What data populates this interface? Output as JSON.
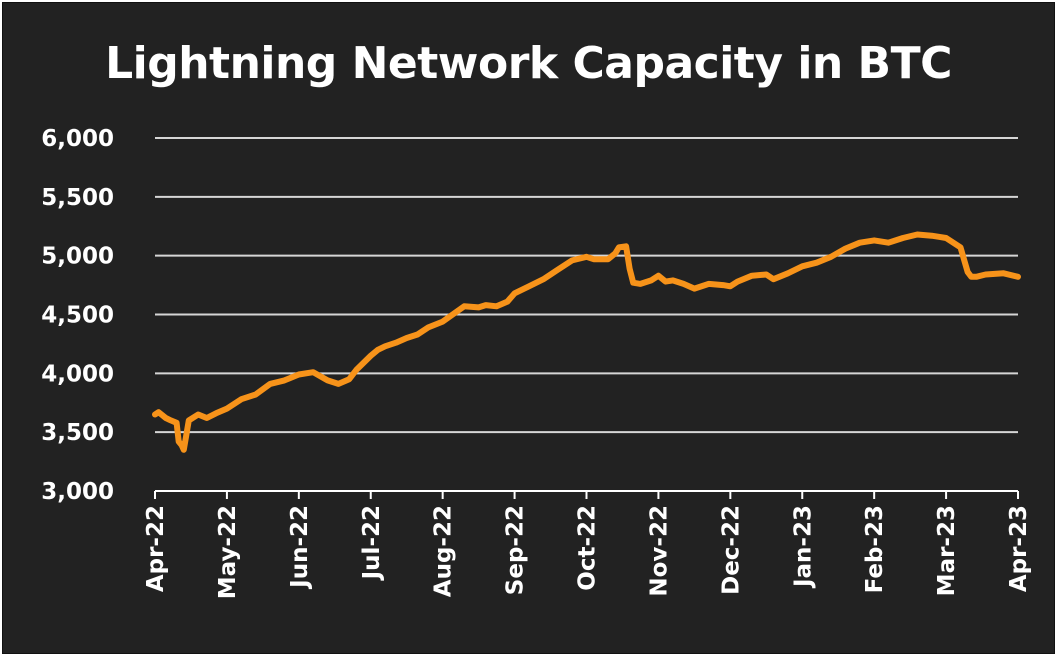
{
  "chart_data": {
    "type": "line",
    "title": "Lightning Network Capacity in BTC",
    "xlabel": "",
    "ylabel": "",
    "ylim": [
      3000,
      6000
    ],
    "yticks": [
      "3,000",
      "3,500",
      "4,000",
      "4,500",
      "5,000",
      "5,500",
      "6,000"
    ],
    "yticks_values": [
      3000,
      3500,
      4000,
      4500,
      5000,
      5500,
      6000
    ],
    "xticks": [
      "Apr-22",
      "May-22",
      "Jun-22",
      "Jul-22",
      "Aug-22",
      "Sep-22",
      "Oct-22",
      "Nov-22",
      "Dec-22",
      "Jan-23",
      "Feb-23",
      "Mar-23",
      "Apr-23"
    ],
    "grid": true,
    "line_color": "#f7931a",
    "series": [
      {
        "x": [
          0,
          0.05,
          0.15,
          0.22,
          0.3,
          0.33,
          0.37,
          0.4,
          0.47,
          0.6,
          0.72,
          0.85,
          1.0,
          1.2,
          1.4,
          1.6,
          1.8,
          2.0,
          2.2,
          2.4,
          2.55,
          2.7,
          2.8,
          3.0,
          3.1,
          3.2,
          3.35,
          3.5,
          3.65,
          3.8,
          4.0,
          4.3,
          4.5,
          4.6,
          4.75,
          4.9,
          5.0,
          5.2,
          5.4,
          5.6,
          5.8,
          6.0,
          6.1,
          6.2,
          6.3,
          6.4,
          6.45,
          6.55,
          6.6,
          6.65,
          6.75,
          6.9,
          7.0,
          7.1,
          7.2,
          7.35,
          7.5,
          7.7,
          7.9,
          8.0,
          8.1,
          8.3,
          8.5,
          8.6,
          8.8,
          8.9,
          9.0,
          9.2,
          9.4,
          9.6,
          9.8,
          10.0,
          10.2,
          10.4,
          10.6,
          10.8,
          10.9,
          11.0,
          11.2,
          11.3,
          11.35,
          11.42,
          11.55,
          11.8,
          12.0
        ],
        "y": [
          3650,
          3670,
          3620,
          3600,
          3580,
          3420,
          3390,
          3350,
          3600,
          3650,
          3620,
          3660,
          3700,
          3780,
          3820,
          3910,
          3940,
          3990,
          4010,
          3940,
          3910,
          3950,
          4030,
          4150,
          4200,
          4230,
          4260,
          4300,
          4330,
          4390,
          4440,
          4570,
          4560,
          4580,
          4570,
          4610,
          4680,
          4740,
          4800,
          4880,
          4960,
          4990,
          4970,
          4970,
          4970,
          5020,
          5070,
          5080,
          4890,
          4770,
          4760,
          4790,
          4830,
          4780,
          4790,
          4760,
          4720,
          4760,
          4750,
          4740,
          4780,
          4830,
          4840,
          4800,
          4850,
          4880,
          4910,
          4940,
          4990,
          5060,
          5110,
          5130,
          5110,
          5150,
          5180,
          5170,
          5160,
          5150,
          5070,
          4860,
          4820,
          4820,
          4840,
          4850,
          4820
        ]
      }
    ]
  }
}
